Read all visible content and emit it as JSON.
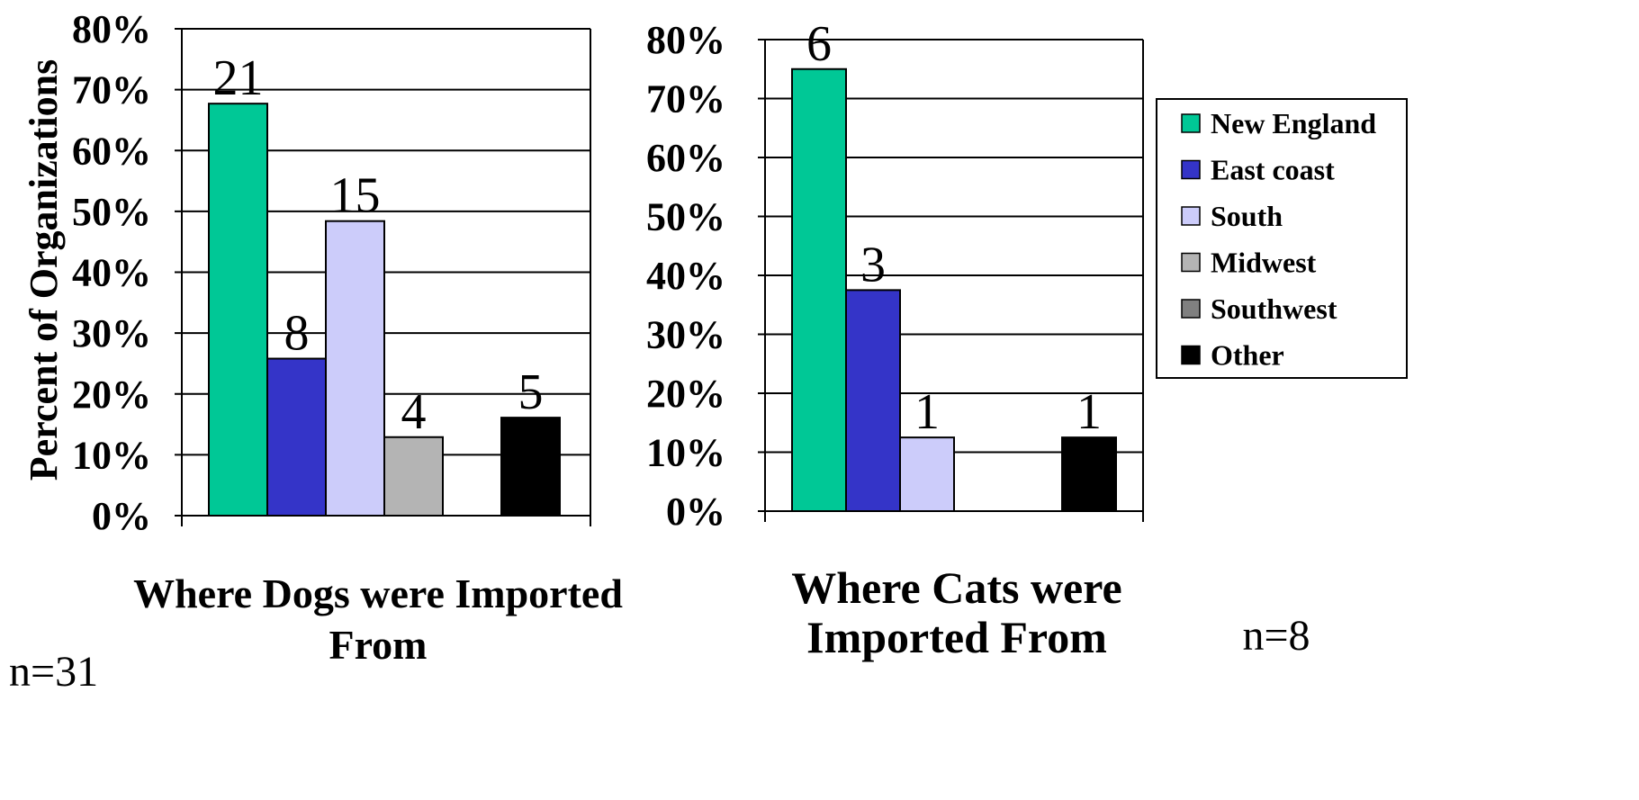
{
  "chart_data": [
    {
      "type": "bar",
      "title": "Where Dogs were Imported From",
      "ylabel": "Percent of Organizations",
      "ylim": [
        0,
        80
      ],
      "yticks": [
        "0%",
        "10%",
        "20%",
        "30%",
        "40%",
        "50%",
        "60%",
        "70%",
        "80%"
      ],
      "grid": true,
      "categories": [
        "New England",
        "East coast",
        "South",
        "Midwest",
        "Southwest",
        "Other"
      ],
      "values": [
        67.7,
        25.8,
        48.4,
        12.9,
        0,
        16.1
      ],
      "labels": [
        "21",
        "8",
        "15",
        "4",
        "",
        "5"
      ],
      "n_label": "n=31"
    },
    {
      "type": "bar",
      "title": "Where Cats were Imported From",
      "ylim": [
        0,
        80
      ],
      "yticks": [
        "0%",
        "10%",
        "20%",
        "30%",
        "40%",
        "50%",
        "60%",
        "70%",
        "80%"
      ],
      "grid": true,
      "categories": [
        "New England",
        "East coast",
        "South",
        "Midwest",
        "Southwest",
        "Other"
      ],
      "values": [
        75,
        37.5,
        12.5,
        0,
        0,
        12.5
      ],
      "labels": [
        "6",
        "3",
        "1",
        "",
        "",
        "1"
      ],
      "n_label": "n=8"
    }
  ],
  "legend": {
    "placement": "right",
    "entries": [
      {
        "label": "New England",
        "color": "#00c896"
      },
      {
        "label": "East coast",
        "color": "#3434c8"
      },
      {
        "label": "South",
        "color": "#ccccfa"
      },
      {
        "label": "Midwest",
        "color": "#b4b4b4"
      },
      {
        "label": "Southwest",
        "color": "#808080"
      },
      {
        "label": "Other",
        "color": "#000000"
      }
    ]
  }
}
